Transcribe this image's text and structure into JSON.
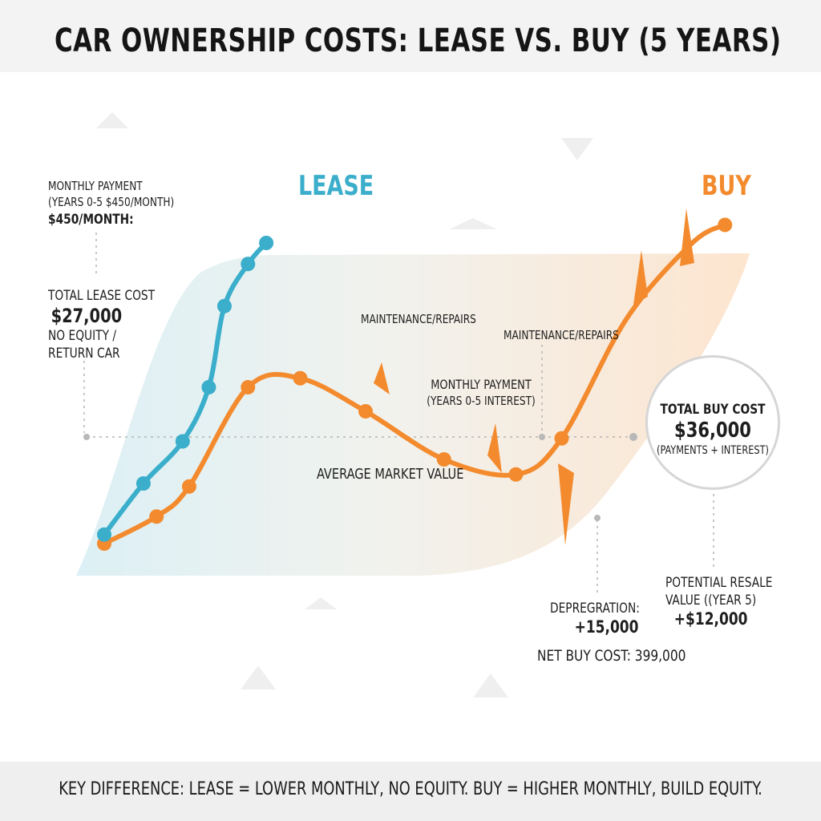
{
  "title": "CAR OWNERSHIP COSTS: LEASE VS. BUY (5 YEARS)",
  "footer": "KEY DIFFERENCE: LEASE = LOWER MONTHLY, NO EQUITY. BUY = HIGHER MONTHLY, BUILD EQUITY.",
  "colors": {
    "lease": "#3aaecb",
    "buy": "#f38b2e",
    "lease_fill": "#dcf0f5",
    "buy_fill": "#fde5cf",
    "guide": "#b5b5b5"
  },
  "annotations": {
    "monthly_payment_lease": {
      "line1": "MONTHLY PAYMENT",
      "line2": "(YEARS 0-5 $450/MONTH)",
      "line3": "$450/MONTH:"
    },
    "total_lease": {
      "line1": "TOTAL LEASE COST",
      "line2": "$27,000",
      "line3": "NO EQUITY /",
      "line4": "RETURN CAR"
    },
    "maintenance_1": "MAINTENANCE/REPAIRS",
    "maintenance_2": "MAINTENANCE/REPAIRS",
    "monthly_payment_buy": {
      "line1": "MONTHLY PAYMENT",
      "line2": "(YEARS 0-5 INTEREST)"
    },
    "average_market_value": "AVERAGE MARKET VALUE",
    "total_buy": {
      "line1": "TOTAL BUY COST",
      "line2": "$36,000",
      "line3": "(PAYMENTS + INTEREST)"
    },
    "resale": {
      "line1": "POTENTIAL RESALE",
      "line2": "VALUE ((YEAR 5)",
      "line3": "+$12,000"
    },
    "depreciation": {
      "line1": "DEPREGRATION:",
      "line2": "+15,000"
    },
    "net_buy": "NET BUY COST: 399,000"
  },
  "chart_data": {
    "type": "line",
    "title": "CAR OWNERSHIP COSTS: LEASE VS. BUY (5 YEARS)",
    "xlabel": "",
    "ylabel": "",
    "grid": false,
    "legend": "series labels above curves",
    "series": [
      {
        "name": "LEASE",
        "points": [
          [
            0.0,
            0.03
          ],
          [
            0.3,
            0.2
          ],
          [
            0.6,
            0.34
          ],
          [
            0.8,
            0.52
          ],
          [
            0.92,
            0.79
          ],
          [
            1.1,
            0.93
          ],
          [
            1.24,
            1.0
          ]
        ]
      },
      {
        "name": "BUY",
        "points": [
          [
            0.0,
            0.0
          ],
          [
            0.4,
            0.09
          ],
          [
            0.65,
            0.19
          ],
          [
            1.1,
            0.52
          ],
          [
            1.5,
            0.55
          ],
          [
            2.0,
            0.44
          ],
          [
            2.6,
            0.28
          ],
          [
            3.15,
            0.23
          ],
          [
            3.5,
            0.35
          ],
          [
            4.0,
            0.75
          ],
          [
            4.5,
            1.0
          ],
          [
            4.75,
            1.06
          ]
        ]
      }
    ]
  },
  "series_labels": {
    "lease": "LEASE",
    "buy": "BUY"
  }
}
